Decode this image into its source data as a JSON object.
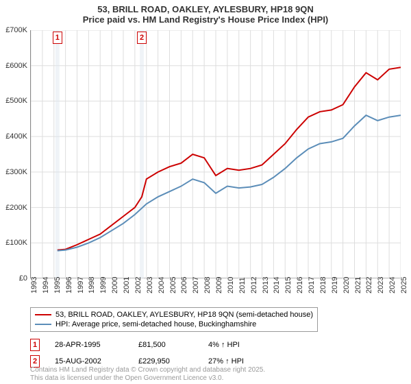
{
  "title_line1": "53, BRILL ROAD, OAKLEY, AYLESBURY, HP18 9QN",
  "title_line2": "Price paid vs. HM Land Registry's House Price Index (HPI)",
  "chart": {
    "type": "line",
    "x_range": [
      1993,
      2025
    ],
    "y_range": [
      0,
      700
    ],
    "y_ticks": [
      0,
      100,
      200,
      300,
      400,
      500,
      600,
      700
    ],
    "y_tick_labels": [
      "£0",
      "£100K",
      "£200K",
      "£300K",
      "£400K",
      "£500K",
      "£600K",
      "£700K"
    ],
    "x_ticks": [
      1993,
      1994,
      1995,
      1996,
      1997,
      1998,
      1999,
      2000,
      2001,
      2002,
      2003,
      2004,
      2005,
      2006,
      2007,
      2008,
      2009,
      2010,
      2011,
      2012,
      2013,
      2014,
      2015,
      2016,
      2017,
      2018,
      2019,
      2020,
      2021,
      2022,
      2023,
      2024,
      2025
    ],
    "grid_color": "#dddddd",
    "axis_color": "#888888",
    "background_color": "#ffffff",
    "series": [
      {
        "name": "price_paid",
        "color": "#cc0000",
        "width": 2,
        "points": [
          [
            1995.3,
            80
          ],
          [
            1996,
            82
          ],
          [
            1997,
            95
          ],
          [
            1998,
            110
          ],
          [
            1999,
            125
          ],
          [
            2000,
            150
          ],
          [
            2001,
            175
          ],
          [
            2002,
            200
          ],
          [
            2002.6,
            230
          ],
          [
            2003,
            280
          ],
          [
            2004,
            300
          ],
          [
            2005,
            315
          ],
          [
            2006,
            325
          ],
          [
            2007,
            350
          ],
          [
            2008,
            340
          ],
          [
            2009,
            290
          ],
          [
            2010,
            310
          ],
          [
            2011,
            305
          ],
          [
            2012,
            310
          ],
          [
            2013,
            320
          ],
          [
            2014,
            350
          ],
          [
            2015,
            380
          ],
          [
            2016,
            420
          ],
          [
            2017,
            455
          ],
          [
            2018,
            470
          ],
          [
            2019,
            475
          ],
          [
            2020,
            490
          ],
          [
            2021,
            540
          ],
          [
            2022,
            580
          ],
          [
            2023,
            560
          ],
          [
            2024,
            590
          ],
          [
            2025,
            595
          ]
        ]
      },
      {
        "name": "hpi",
        "color": "#5b8db8",
        "width": 2,
        "points": [
          [
            1995.3,
            78
          ],
          [
            1996,
            80
          ],
          [
            1997,
            88
          ],
          [
            1998,
            100
          ],
          [
            1999,
            115
          ],
          [
            2000,
            135
          ],
          [
            2001,
            155
          ],
          [
            2002,
            180
          ],
          [
            2003,
            210
          ],
          [
            2004,
            230
          ],
          [
            2005,
            245
          ],
          [
            2006,
            260
          ],
          [
            2007,
            280
          ],
          [
            2008,
            270
          ],
          [
            2009,
            240
          ],
          [
            2010,
            260
          ],
          [
            2011,
            255
          ],
          [
            2012,
            258
          ],
          [
            2013,
            265
          ],
          [
            2014,
            285
          ],
          [
            2015,
            310
          ],
          [
            2016,
            340
          ],
          [
            2017,
            365
          ],
          [
            2018,
            380
          ],
          [
            2019,
            385
          ],
          [
            2020,
            395
          ],
          [
            2021,
            430
          ],
          [
            2022,
            460
          ],
          [
            2023,
            445
          ],
          [
            2024,
            455
          ],
          [
            2025,
            460
          ]
        ]
      }
    ],
    "markers": [
      {
        "id": "1",
        "year": 1995.3
      },
      {
        "id": "2",
        "year": 2002.6
      }
    ],
    "marker_band_width_years": 0.35,
    "marker_band_color": "#e0e8f0",
    "marker_box_border": "#cc0000"
  },
  "legend": {
    "items": [
      {
        "color": "#cc0000",
        "label": "53, BRILL ROAD, OAKLEY, AYLESBURY, HP18 9QN (semi-detached house)"
      },
      {
        "color": "#5b8db8",
        "label": "HPI: Average price, semi-detached house, Buckinghamshire"
      }
    ]
  },
  "sales": [
    {
      "id": "1",
      "date": "28-APR-1995",
      "price": "£81,500",
      "hpi": "4% ↑ HPI"
    },
    {
      "id": "2",
      "date": "15-AUG-2002",
      "price": "£229,950",
      "hpi": "27% ↑ HPI"
    }
  ],
  "footer_line1": "Contains HM Land Registry data © Crown copyright and database right 2025.",
  "footer_line2": "This data is licensed under the Open Government Licence v3.0."
}
